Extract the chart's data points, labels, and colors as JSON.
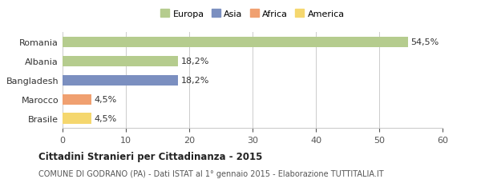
{
  "categories": [
    "Brasile",
    "Marocco",
    "Bangladesh",
    "Albania",
    "Romania"
  ],
  "values": [
    4.5,
    4.5,
    18.2,
    18.2,
    54.5
  ],
  "labels": [
    "4,5%",
    "4,5%",
    "18,2%",
    "18,2%",
    "54,5%"
  ],
  "colors": [
    "#f5d76e",
    "#f0a070",
    "#7b8fc0",
    "#b5cc8e",
    "#b5cc8e"
  ],
  "legend_items": [
    {
      "label": "Europa",
      "color": "#b5cc8e"
    },
    {
      "label": "Asia",
      "color": "#7b8fc0"
    },
    {
      "label": "Africa",
      "color": "#f0a070"
    },
    {
      "label": "America",
      "color": "#f5d76e"
    }
  ],
  "xlim": [
    0,
    60
  ],
  "xticks": [
    0,
    10,
    20,
    30,
    40,
    50,
    60
  ],
  "title": "Cittadini Stranieri per Cittadinanza - 2015",
  "subtitle": "COMUNE DI GODRANO (PA) - Dati ISTAT al 1° gennaio 2015 - Elaborazione TUTTITALIA.IT",
  "background_color": "#ffffff",
  "bar_height": 0.55,
  "grid_color": "#cccccc"
}
